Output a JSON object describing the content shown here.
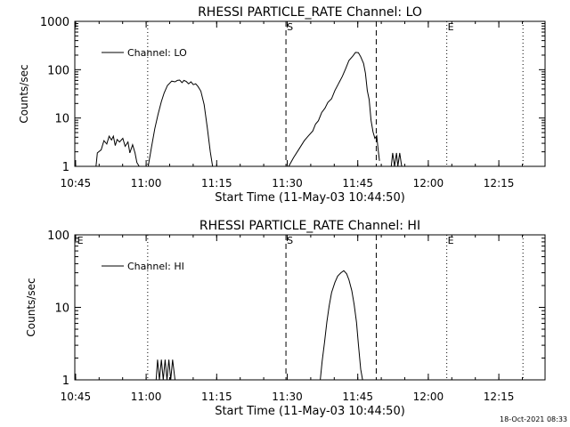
{
  "footer_timestamp": "18-Oct-2021 08:33",
  "chart_data": [
    {
      "type": "line",
      "title": "RHESSI PARTICLE_RATE Channel: LO",
      "xlabel": "Start Time (11-May-03 10:44:50)",
      "ylabel": "Counts/sec",
      "y_scale": "log",
      "ylim": [
        1,
        1000
      ],
      "y_ticks": [
        "1",
        "10",
        "100",
        "1000"
      ],
      "xlim_minutes": [
        0,
        100
      ],
      "x_tick_labels": [
        "10:45",
        "11:00",
        "11:15",
        "11:30",
        "11:45",
        "12:00",
        "12:15"
      ],
      "legend": {
        "label": "Channel: LO",
        "position": "top-left"
      },
      "grid": false,
      "markers": [
        {
          "label": "",
          "time_minutes": 15.5,
          "style": "dotted"
        },
        {
          "label": "S",
          "time_minutes": 44.9,
          "style": "dashed"
        },
        {
          "label": "",
          "time_minutes": 64.1,
          "style": "dashed"
        },
        {
          "label": "E",
          "time_minutes": 79.1,
          "style": "dotted"
        },
        {
          "label": "",
          "time_minutes": 95.3,
          "style": "dotted"
        }
      ],
      "series": [
        {
          "name": "Channel: LO",
          "segments": [
            [
              [
                4.5,
                1
              ],
              [
                4.8,
                1.9
              ],
              [
                5.6,
                2.2
              ],
              [
                6.2,
                3.4
              ],
              [
                6.8,
                2.9
              ],
              [
                7.3,
                4.2
              ],
              [
                7.8,
                3.5
              ],
              [
                8.2,
                4.2
              ],
              [
                8.6,
                2.7
              ],
              [
                9,
                3.6
              ],
              [
                9.5,
                3.2
              ],
              [
                10.2,
                3.8
              ],
              [
                10.7,
                2.6
              ],
              [
                11.3,
                3.2
              ],
              [
                11.7,
                1.9
              ],
              [
                12.3,
                2.8
              ],
              [
                12.8,
                1.9
              ],
              [
                13.2,
                1.2
              ],
              [
                13.7,
                1
              ]
            ],
            [
              [
                15.6,
                1
              ],
              [
                16.3,
                2.5
              ],
              [
                17,
                6
              ],
              [
                17.7,
                12
              ],
              [
                18.4,
                22
              ],
              [
                19,
                33
              ],
              [
                19.7,
                47
              ],
              [
                20.6,
                58
              ],
              [
                21.3,
                56
              ],
              [
                21.8,
                60
              ],
              [
                22.3,
                61
              ],
              [
                22.8,
                54
              ],
              [
                23.2,
                60
              ],
              [
                23.7,
                57
              ],
              [
                24.2,
                51
              ],
              [
                24.7,
                56
              ],
              [
                25.2,
                49
              ],
              [
                25.7,
                51
              ],
              [
                26.2,
                45
              ],
              [
                26.8,
                36
              ],
              [
                27.5,
                19
              ],
              [
                28.2,
                6
              ],
              [
                28.8,
                2
              ],
              [
                29.3,
                1
              ]
            ],
            [
              [
                45.5,
                1
              ],
              [
                46.5,
                1.5
              ],
              [
                47.7,
                2.3
              ],
              [
                48.8,
                3.4
              ],
              [
                49.7,
                4.3
              ],
              [
                50.6,
                5.4
              ],
              [
                51.2,
                7.5
              ],
              [
                51.8,
                8.8
              ],
              [
                52.5,
                13
              ],
              [
                53.2,
                16
              ],
              [
                53.8,
                21
              ],
              [
                54.6,
                25
              ],
              [
                55.3,
                37
              ],
              [
                56.1,
                52
              ],
              [
                56.9,
                73
              ],
              [
                57.6,
                105
              ],
              [
                58.3,
                155
              ],
              [
                59.1,
                190
              ],
              [
                59.7,
                228
              ],
              [
                60.3,
                225
              ],
              [
                60.8,
                185
              ],
              [
                61.4,
                135
              ],
              [
                61.8,
                85
              ],
              [
                62.2,
                37
              ],
              [
                62.6,
                24
              ],
              [
                63,
                9
              ],
              [
                63.4,
                5.2
              ],
              [
                63.8,
                3.8
              ],
              [
                64.2,
                4.3
              ],
              [
                64.5,
                2.2
              ],
              [
                64.8,
                1.3
              ]
            ],
            [
              [
                67.3,
                1
              ],
              [
                67.6,
                1.9
              ],
              [
                68,
                1
              ],
              [
                68.4,
                1.9
              ],
              [
                68.7,
                1
              ],
              [
                69.1,
                1.9
              ],
              [
                69.5,
                1
              ]
            ]
          ]
        }
      ]
    },
    {
      "type": "line",
      "title": "RHESSI PARTICLE_RATE Channel: HI",
      "xlabel": "Start Time (11-May-03 10:44:50)",
      "ylabel": "Counts/sec",
      "y_scale": "log",
      "ylim": [
        1,
        100
      ],
      "y_ticks": [
        "1",
        "10",
        "100"
      ],
      "xlim_minutes": [
        0,
        100
      ],
      "x_tick_labels": [
        "10:45",
        "11:00",
        "11:15",
        "11:30",
        "11:45",
        "12:00",
        "12:15"
      ],
      "legend": {
        "label": "Channel: HI",
        "position": "top-left"
      },
      "grid": false,
      "markers": [
        {
          "label": "E",
          "time_minutes": 0.3,
          "style": "none"
        },
        {
          "label": "",
          "time_minutes": 15.5,
          "style": "dotted"
        },
        {
          "label": "S",
          "time_minutes": 44.9,
          "style": "dashed"
        },
        {
          "label": "",
          "time_minutes": 64.1,
          "style": "dashed"
        },
        {
          "label": "E",
          "time_minutes": 79.1,
          "style": "dotted"
        },
        {
          "label": "",
          "time_minutes": 95.3,
          "style": "dotted"
        }
      ],
      "series": [
        {
          "name": "Channel: HI",
          "segments": [
            [
              [
                17.3,
                1
              ],
              [
                17.6,
                1.9
              ],
              [
                18,
                1
              ],
              [
                18.4,
                1.9
              ],
              [
                18.8,
                1
              ],
              [
                19.2,
                1.9
              ],
              [
                19.6,
                1
              ],
              [
                20,
                1.9
              ],
              [
                20.4,
                1
              ],
              [
                20.8,
                1.9
              ],
              [
                21.3,
                1
              ]
            ],
            [
              [
                52.2,
                1
              ],
              [
                52.6,
                1.8
              ],
              [
                53.1,
                3.3
              ],
              [
                53.6,
                6.3
              ],
              [
                54.1,
                10.5
              ],
              [
                54.6,
                16
              ],
              [
                55.3,
                22
              ],
              [
                55.9,
                27
              ],
              [
                56.6,
                30
              ],
              [
                57.2,
                32
              ],
              [
                57.8,
                29
              ],
              [
                58.3,
                24
              ],
              [
                58.9,
                17
              ],
              [
                59.4,
                11
              ],
              [
                59.9,
                6.2
              ],
              [
                60.3,
                3.1
              ],
              [
                60.8,
                1.4
              ],
              [
                61.2,
                1
              ]
            ]
          ]
        }
      ]
    }
  ]
}
